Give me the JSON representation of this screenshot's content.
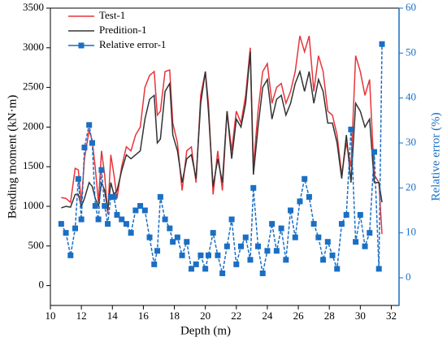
{
  "chart_data": {
    "type": "line",
    "x_label": "Depth (m)",
    "y_label": "Bending moment (kN·m)",
    "y2_label": "Relative error (%)",
    "x": [
      10.7,
      11.0,
      11.3,
      11.6,
      11.8,
      12.0,
      12.2,
      12.5,
      12.7,
      12.9,
      13.1,
      13.3,
      13.5,
      13.7,
      13.9,
      14.1,
      14.3,
      14.6,
      14.9,
      15.2,
      15.5,
      15.8,
      16.1,
      16.4,
      16.7,
      16.9,
      17.1,
      17.4,
      17.7,
      17.9,
      18.2,
      18.5,
      18.8,
      19.1,
      19.4,
      19.7,
      20.0,
      20.2,
      20.5,
      20.8,
      21.1,
      21.4,
      21.7,
      22.0,
      22.3,
      22.6,
      22.9,
      23.1,
      23.4,
      23.7,
      24.0,
      24.3,
      24.6,
      24.9,
      25.2,
      25.5,
      25.8,
      26.1,
      26.4,
      26.7,
      27.0,
      27.3,
      27.6,
      27.9,
      28.2,
      28.5,
      28.8,
      29.1,
      29.4,
      29.7,
      30.0,
      30.3,
      30.6,
      30.9,
      31.2,
      31.4
    ],
    "series": [
      {
        "name": "Test-1",
        "color": "#e8343a",
        "marker": false,
        "values": [
          1110,
          1100,
          1050,
          1480,
          1460,
          1050,
          1600,
          1960,
          1830,
          1480,
          1050,
          1700,
          1400,
          900,
          1650,
          1400,
          1100,
          1500,
          1750,
          1700,
          1900,
          2000,
          2500,
          2650,
          2700,
          2150,
          2200,
          2700,
          2720,
          2050,
          1800,
          1200,
          1700,
          1750,
          1300,
          2400,
          2700,
          2300,
          1150,
          1700,
          1200,
          2200,
          1700,
          2200,
          2050,
          2400,
          3000,
          1500,
          2200,
          2700,
          2800,
          2300,
          2500,
          2550,
          2300,
          2450,
          2700,
          3150,
          2950,
          3150,
          2450,
          2900,
          2700,
          2200,
          2150,
          1900,
          1400,
          1800,
          1500,
          2900,
          2700,
          2400,
          2600,
          1400,
          1300,
          650
        ]
      },
      {
        "name": "Predition-1",
        "color": "#333333",
        "marker": false,
        "values": [
          980,
          1000,
          990,
          1150,
          1150,
          1000,
          1100,
          1300,
          1250,
          1100,
          1000,
          1300,
          1200,
          950,
          1300,
          1150,
          1200,
          1450,
          1650,
          1600,
          1650,
          1700,
          2100,
          2350,
          2400,
          1800,
          1850,
          2450,
          2550,
          1900,
          1700,
          1300,
          1600,
          1650,
          1350,
          2300,
          2700,
          2200,
          1250,
          1600,
          1300,
          2200,
          1600,
          2100,
          2000,
          2300,
          2950,
          1400,
          2000,
          2500,
          2600,
          2100,
          2350,
          2400,
          2150,
          2300,
          2550,
          2700,
          2450,
          2700,
          2300,
          2600,
          2450,
          2050,
          2050,
          1800,
          1350,
          1900,
          1300,
          2300,
          2200,
          2000,
          2100,
          1300,
          1300,
          1050
        ]
      },
      {
        "name": "Relative error-1",
        "color": "#1a6fc4",
        "marker": true,
        "axis": "y2",
        "values": [
          12,
          10,
          5,
          11,
          22,
          13,
          29,
          34,
          30,
          16,
          13,
          24,
          16,
          12,
          18,
          18,
          14,
          13,
          12,
          10,
          15,
          16,
          15,
          9,
          3,
          6,
          18,
          13,
          11,
          8,
          9,
          5,
          8,
          2,
          3,
          5,
          2,
          5,
          10,
          5,
          1,
          7,
          13,
          3,
          7,
          9,
          4,
          20,
          7,
          1,
          6,
          12,
          6,
          11,
          4,
          15,
          9,
          17,
          22,
          18,
          12,
          9,
          4,
          8,
          5,
          2,
          12,
          14,
          33,
          8,
          14,
          7,
          10,
          28,
          2,
          52
        ]
      }
    ],
    "xlim": [
      10,
      32.5
    ],
    "xticks": [
      10,
      12,
      14,
      16,
      18,
      20,
      22,
      24,
      26,
      28,
      30,
      32
    ],
    "ylim": [
      -250,
      3500
    ],
    "yticks": [
      0,
      500,
      1000,
      1500,
      2000,
      2500,
      3000,
      3500
    ],
    "y2lim": [
      -6.15,
      60
    ],
    "y2ticks": [
      0,
      10,
      20,
      30,
      40,
      50,
      60
    ],
    "legend": "upper left"
  }
}
